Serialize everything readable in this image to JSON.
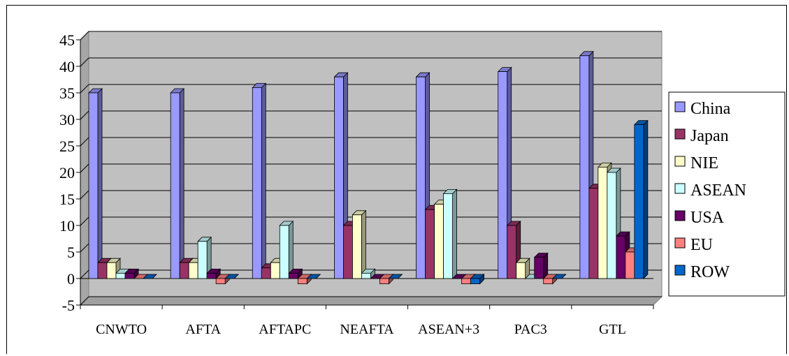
{
  "chart_data": {
    "type": "bar",
    "categories": [
      "CNWTO",
      "AFTA",
      "AFTAPC",
      "NEAFTA",
      "ASEAN+3",
      "PAC3",
      "GTL"
    ],
    "series": [
      {
        "name": "China",
        "color": "#9999ff",
        "values": [
          35,
          35,
          36,
          38,
          38,
          39,
          42
        ]
      },
      {
        "name": "Japan",
        "color": "#993366",
        "values": [
          3,
          3,
          2,
          10,
          13,
          10,
          17
        ]
      },
      {
        "name": "NIE",
        "color": "#ffffcc",
        "values": [
          3,
          3,
          3,
          12,
          14,
          3,
          21
        ]
      },
      {
        "name": "ASEAN",
        "color": "#ccffff",
        "values": [
          1,
          7,
          10,
          1,
          16,
          0,
          20
        ]
      },
      {
        "name": "USA",
        "color": "#660066",
        "values": [
          1,
          1,
          1,
          0,
          0,
          4,
          8
        ]
      },
      {
        "name": "EU",
        "color": "#ff8080",
        "values": [
          0,
          -1,
          -1,
          -1,
          -1,
          -1,
          5
        ]
      },
      {
        "name": "ROW",
        "color": "#0066cc",
        "values": [
          0,
          0,
          0,
          0,
          -1,
          0,
          29
        ]
      }
    ],
    "yticks": [
      -5,
      0,
      5,
      10,
      15,
      20,
      25,
      30,
      35,
      40,
      45
    ],
    "ylim": [
      -5,
      45
    ],
    "grid": true,
    "legend": "right",
    "wall_color": "#c0c0c0"
  }
}
